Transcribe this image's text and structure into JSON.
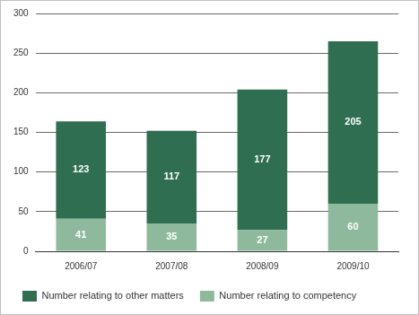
{
  "chart_data": {
    "type": "bar",
    "stacked": true,
    "categories": [
      "2006/07",
      "2007/08",
      "2008/09",
      "2009/10"
    ],
    "series": [
      {
        "name": "Number relating to competency",
        "color": "#8fb99d",
        "values": [
          41,
          35,
          27,
          60
        ]
      },
      {
        "name": "Number relating to other matters",
        "color": "#2f6e51",
        "values": [
          123,
          117,
          177,
          205
        ]
      }
    ],
    "ylim": [
      0,
      300
    ],
    "yticks": [
      0,
      50,
      100,
      150,
      200,
      250,
      300
    ],
    "grid": true,
    "legend": "bottom",
    "data_labels": true
  }
}
